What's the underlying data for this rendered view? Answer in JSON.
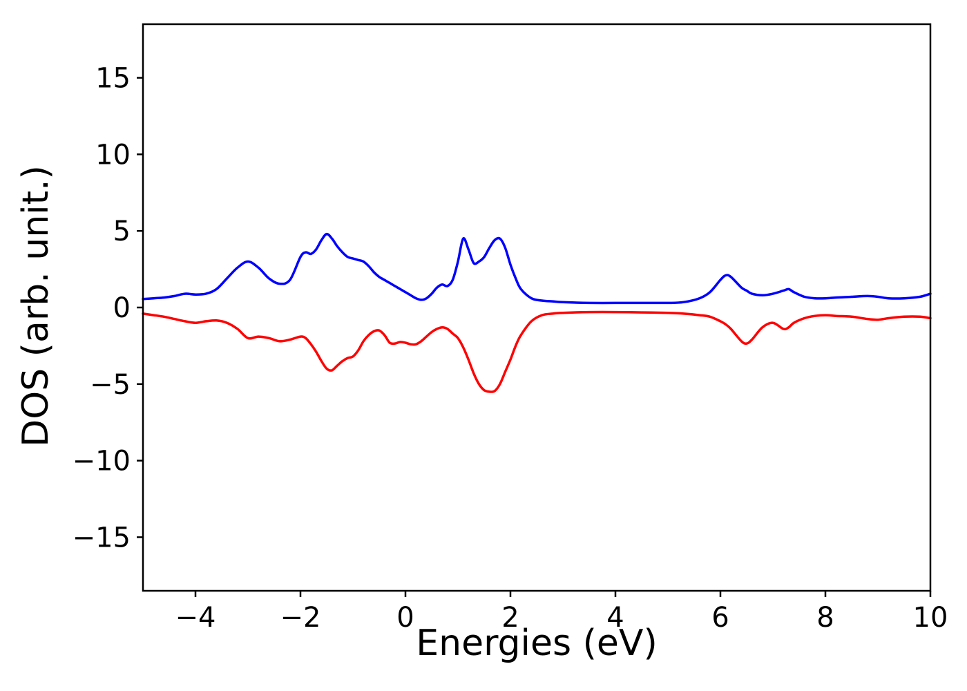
{
  "chart_data": {
    "type": "line",
    "title": "",
    "xlabel": "Energies (eV)",
    "ylabel": "DOS (arb. unit.)",
    "xlim": [
      -5,
      10
    ],
    "ylim": [
      -18.5,
      18.5
    ],
    "grid": false,
    "legend": null,
    "axis_color": "#000000",
    "background_color": "#ffffff",
    "x_ticks": {
      "values": [
        -4,
        -2,
        0,
        2,
        4,
        6,
        8,
        10
      ],
      "labels": [
        "−4",
        "−2",
        "0",
        "2",
        "4",
        "6",
        "8",
        "10"
      ]
    },
    "y_ticks": {
      "values": [
        -15,
        -10,
        -5,
        0,
        5,
        10,
        15
      ],
      "labels": [
        "−15",
        "−10",
        "−5",
        "0",
        "5",
        "10",
        "15"
      ]
    },
    "x": [
      -5.0,
      -4.8,
      -4.6,
      -4.4,
      -4.2,
      -4.0,
      -3.8,
      -3.6,
      -3.4,
      -3.2,
      -3.0,
      -2.8,
      -2.6,
      -2.4,
      -2.2,
      -2.0,
      -1.9,
      -1.8,
      -1.7,
      -1.6,
      -1.5,
      -1.4,
      -1.3,
      -1.2,
      -1.1,
      -1.0,
      -0.9,
      -0.8,
      -0.7,
      -0.6,
      -0.5,
      -0.4,
      -0.3,
      -0.2,
      -0.1,
      0.0,
      0.1,
      0.2,
      0.3,
      0.4,
      0.5,
      0.6,
      0.7,
      0.8,
      0.9,
      1.0,
      1.1,
      1.2,
      1.3,
      1.4,
      1.5,
      1.6,
      1.7,
      1.8,
      1.9,
      2.0,
      2.1,
      2.2,
      2.4,
      2.6,
      2.8,
      3.0,
      3.5,
      4.0,
      4.5,
      5.0,
      5.3,
      5.6,
      5.8,
      6.0,
      6.1,
      6.2,
      6.4,
      6.5,
      6.6,
      6.8,
      7.0,
      7.2,
      7.3,
      7.4,
      7.6,
      7.8,
      8.0,
      8.2,
      8.5,
      8.8,
      9.0,
      9.2,
      9.5,
      9.8,
      10.0
    ],
    "series": [
      {
        "name": "blue-curve",
        "color": "#0000ff",
        "values": [
          0.55,
          0.6,
          0.65,
          0.75,
          0.9,
          0.85,
          0.9,
          1.2,
          1.9,
          2.6,
          3.0,
          2.6,
          1.9,
          1.55,
          1.8,
          3.3,
          3.6,
          3.5,
          3.8,
          4.4,
          4.8,
          4.5,
          4.0,
          3.6,
          3.3,
          3.2,
          3.1,
          3.0,
          2.7,
          2.3,
          2.0,
          1.8,
          1.6,
          1.4,
          1.2,
          1.0,
          0.8,
          0.6,
          0.5,
          0.6,
          0.9,
          1.3,
          1.5,
          1.4,
          1.8,
          3.0,
          4.5,
          3.8,
          2.9,
          3.0,
          3.3,
          3.9,
          4.4,
          4.5,
          3.9,
          2.8,
          1.9,
          1.2,
          0.6,
          0.45,
          0.4,
          0.35,
          0.3,
          0.3,
          0.3,
          0.3,
          0.35,
          0.6,
          1.0,
          1.8,
          2.1,
          2.0,
          1.3,
          1.1,
          0.9,
          0.8,
          0.9,
          1.1,
          1.2,
          1.0,
          0.7,
          0.6,
          0.6,
          0.65,
          0.7,
          0.75,
          0.7,
          0.6,
          0.6,
          0.7,
          0.9
        ]
      },
      {
        "name": "red-curve",
        "color": "#ff0000",
        "values": [
          -0.4,
          -0.5,
          -0.6,
          -0.75,
          -0.9,
          -1.0,
          -0.9,
          -0.85,
          -1.0,
          -1.4,
          -2.0,
          -1.9,
          -2.0,
          -2.2,
          -2.1,
          -1.9,
          -2.0,
          -2.4,
          -2.9,
          -3.5,
          -4.0,
          -4.1,
          -3.8,
          -3.5,
          -3.3,
          -3.2,
          -2.8,
          -2.2,
          -1.8,
          -1.55,
          -1.5,
          -1.8,
          -2.3,
          -2.35,
          -2.25,
          -2.3,
          -2.4,
          -2.4,
          -2.2,
          -1.9,
          -1.6,
          -1.4,
          -1.3,
          -1.4,
          -1.7,
          -2.0,
          -2.6,
          -3.4,
          -4.3,
          -5.0,
          -5.4,
          -5.5,
          -5.45,
          -5.0,
          -4.2,
          -3.4,
          -2.5,
          -1.8,
          -0.9,
          -0.5,
          -0.4,
          -0.35,
          -0.3,
          -0.3,
          -0.32,
          -0.35,
          -0.4,
          -0.5,
          -0.6,
          -0.9,
          -1.1,
          -1.4,
          -2.2,
          -2.35,
          -2.1,
          -1.3,
          -1.0,
          -1.4,
          -1.3,
          -1.0,
          -0.7,
          -0.55,
          -0.5,
          -0.55,
          -0.6,
          -0.75,
          -0.8,
          -0.7,
          -0.6,
          -0.6,
          -0.7
        ]
      }
    ]
  }
}
